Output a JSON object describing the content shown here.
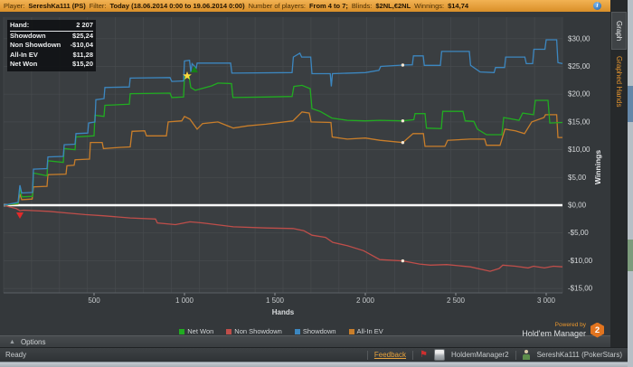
{
  "header": {
    "segments": [
      {
        "label": "Player:",
        "value": "SereshKa111 (PS)"
      },
      {
        "label": "Filter:",
        "value": "Today (18.06.2014 0:00 to 19.06.2014 0:00)"
      },
      {
        "label": "Number of players:",
        "value": "From 4 to 7;"
      },
      {
        "label": "Blinds:",
        "value": "$2NL,€2NL"
      },
      {
        "label": "Winnings:",
        "value": "$14,74"
      }
    ]
  },
  "stats_box": {
    "rows": [
      {
        "label": "Hand:",
        "value": "2 207"
      },
      {
        "label": "Showdown",
        "value": "$25,24"
      },
      {
        "label": "Non Showdown",
        "value": "-$10,04"
      },
      {
        "label": "All-In EV",
        "value": "$11,28"
      },
      {
        "label": "Net Won",
        "value": "$15,20"
      }
    ]
  },
  "legend": {
    "items": [
      {
        "label": "Net Won",
        "color": "#21ac21"
      },
      {
        "label": "Non Showdown",
        "color": "#bf4e4a"
      },
      {
        "label": "Showdown",
        "color": "#3c87c0"
      },
      {
        "label": "All-In EV",
        "color": "#c97e2a"
      }
    ]
  },
  "right_panel": {
    "tabs": [
      {
        "label": "Graph",
        "active": true
      },
      {
        "label": "Graphed Hands",
        "active": false
      }
    ]
  },
  "options_bar": {
    "label": "Options"
  },
  "powered": {
    "line1": "Powered by",
    "line2": "Hold'em Manager",
    "badge": "2"
  },
  "statusbar": {
    "ready": "Ready",
    "feedback": "Feedback",
    "app": "HoldemManager2",
    "account": "SereshKa111 (PokerStars)"
  },
  "colors": {
    "header_bar": "#e8a33d",
    "plot_bg": "#3a3e41",
    "grid": "#474b4e",
    "zero_line": "#ffffff",
    "accent_orange": "#e8962e"
  },
  "chart_data": {
    "type": "line",
    "title": "",
    "plot_bg": "#3a3e41",
    "grid_color": "#474b4e",
    "grid": true,
    "legend_position": "bottom",
    "x_axis": {
      "label": "Hands",
      "min": 0,
      "max": 3100,
      "ticks": [
        {
          "value": 500,
          "label": "500"
        },
        {
          "value": 1000,
          "label": "1 000"
        },
        {
          "value": 1500,
          "label": "1 500"
        },
        {
          "value": 2000,
          "label": "2 000"
        },
        {
          "value": 2500,
          "label": "2 500"
        },
        {
          "value": 3000,
          "label": "3 000"
        }
      ]
    },
    "y_axis": {
      "label": "Winnings",
      "min": -16,
      "max": 33.5,
      "ticks": [
        {
          "value": 30,
          "label": "$30,00"
        },
        {
          "value": 25,
          "label": "$25,00"
        },
        {
          "value": 20,
          "label": "$20,00"
        },
        {
          "value": 15,
          "label": "$15,00"
        },
        {
          "value": 10,
          "label": "$10,00"
        },
        {
          "value": 5,
          "label": "$5,00"
        },
        {
          "value": 0,
          "label": "$0,00"
        },
        {
          "value": -5,
          "label": "-$5,00"
        },
        {
          "value": -10,
          "label": "-$10,00"
        },
        {
          "value": -15,
          "label": "-$15,00"
        }
      ]
    },
    "hover": {
      "hand": 2207,
      "hand_label": "2 207",
      "points": [
        {
          "series": "Showdown",
          "value": 25.24
        },
        {
          "series": "Net Won",
          "value": 15.2
        },
        {
          "series": "All-In EV",
          "value": 11.28
        },
        {
          "series": "Non Showdown",
          "value": -10.04
        }
      ]
    },
    "markers": [
      {
        "shape": "star",
        "hand": 1015,
        "value": 23.3,
        "color": "#ffd83d"
      },
      {
        "shape": "triangle-up",
        "hand": 1055,
        "value": 24.4,
        "color": "#178017"
      },
      {
        "shape": "triangle-down",
        "hand": 90,
        "value": -1.8,
        "color": "#e22a2a"
      }
    ],
    "series": [
      {
        "name": "Non Showdown",
        "color": "#bf4e4a",
        "final": -11.1,
        "points": [
          [
            0,
            0
          ],
          [
            30,
            -0.3
          ],
          [
            70,
            -0.6
          ],
          [
            90,
            -1.0
          ],
          [
            110,
            -0.9
          ],
          [
            250,
            -1.1
          ],
          [
            350,
            -1.4
          ],
          [
            450,
            -1.7
          ],
          [
            550,
            -1.9
          ],
          [
            700,
            -2.3
          ],
          [
            840,
            -2.5
          ],
          [
            850,
            -3.2
          ],
          [
            950,
            -3.5
          ],
          [
            1030,
            -3.0
          ],
          [
            1100,
            -3.2
          ],
          [
            1270,
            -3.9
          ],
          [
            1450,
            -4.1
          ],
          [
            1600,
            -4.2
          ],
          [
            1660,
            -4.6
          ],
          [
            1705,
            -5.4
          ],
          [
            1780,
            -5.8
          ],
          [
            1820,
            -6.7
          ],
          [
            1900,
            -7.3
          ],
          [
            1990,
            -8.2
          ],
          [
            2080,
            -9.8
          ],
          [
            2207,
            -10.04
          ],
          [
            2300,
            -10.6
          ],
          [
            2360,
            -10.8
          ],
          [
            2450,
            -10.7
          ],
          [
            2580,
            -11.1
          ],
          [
            2690,
            -11.9
          ],
          [
            2740,
            -11.4
          ],
          [
            2760,
            -10.8
          ],
          [
            2830,
            -11.0
          ],
          [
            2900,
            -11.3
          ],
          [
            2930,
            -11.0
          ],
          [
            2990,
            -11.3
          ],
          [
            3040,
            -11.0
          ],
          [
            3090,
            -11.1
          ]
        ]
      },
      {
        "name": "All-In EV",
        "color": "#c97e2a",
        "final": 12.2,
        "points": [
          [
            0,
            0
          ],
          [
            80,
            0.2
          ],
          [
            90,
            2.0
          ],
          [
            100,
            1.0
          ],
          [
            158,
            1.1
          ],
          [
            165,
            3.3
          ],
          [
            240,
            3.4
          ],
          [
            245,
            5.5
          ],
          [
            345,
            5.6
          ],
          [
            350,
            7.1
          ],
          [
            390,
            7.2
          ],
          [
            395,
            8.2
          ],
          [
            475,
            8.3
          ],
          [
            480,
            11.3
          ],
          [
            545,
            11.3
          ],
          [
            552,
            10.2
          ],
          [
            640,
            10.4
          ],
          [
            700,
            10.5
          ],
          [
            710,
            13.3
          ],
          [
            780,
            13.4
          ],
          [
            790,
            12.5
          ],
          [
            900,
            12.5
          ],
          [
            910,
            15.0
          ],
          [
            985,
            15.2
          ],
          [
            1000,
            16.0
          ],
          [
            1030,
            15.5
          ],
          [
            1070,
            13.7
          ],
          [
            1100,
            14.7
          ],
          [
            1185,
            15.0
          ],
          [
            1270,
            13.9
          ],
          [
            1350,
            14.3
          ],
          [
            1450,
            14.6
          ],
          [
            1600,
            15.2
          ],
          [
            1650,
            16.8
          ],
          [
            1690,
            16.6
          ],
          [
            1700,
            15.0
          ],
          [
            1810,
            14.9
          ],
          [
            1817,
            12.3
          ],
          [
            1900,
            11.9
          ],
          [
            2000,
            12.1
          ],
          [
            2080,
            11.7
          ],
          [
            2207,
            11.28
          ],
          [
            2264,
            12.9
          ],
          [
            2321,
            12.9
          ],
          [
            2330,
            10.6
          ],
          [
            2440,
            10.6
          ],
          [
            2455,
            11.7
          ],
          [
            2580,
            11.9
          ],
          [
            2660,
            11.9
          ],
          [
            2670,
            10.8
          ],
          [
            2745,
            10.8
          ],
          [
            2772,
            13.7
          ],
          [
            2830,
            13.4
          ],
          [
            2880,
            12.9
          ],
          [
            2920,
            15.0
          ],
          [
            2988,
            15.8
          ],
          [
            2996,
            16.3
          ],
          [
            3058,
            16.3
          ],
          [
            3065,
            12.2
          ],
          [
            3090,
            12.2
          ]
        ]
      },
      {
        "name": "Net Won",
        "color": "#21ac21",
        "final": 14.9,
        "points": [
          [
            0,
            0
          ],
          [
            80,
            0.3
          ],
          [
            90,
            3.2
          ],
          [
            100,
            1.5
          ],
          [
            160,
            1.6
          ],
          [
            165,
            5.8
          ],
          [
            240,
            5.3
          ],
          [
            245,
            8.0
          ],
          [
            330,
            7.7
          ],
          [
            335,
            10.2
          ],
          [
            395,
            10.0
          ],
          [
            400,
            12.3
          ],
          [
            500,
            12.5
          ],
          [
            505,
            16.2
          ],
          [
            555,
            16.0
          ],
          [
            560,
            18.0
          ],
          [
            695,
            18.2
          ],
          [
            700,
            20.1
          ],
          [
            920,
            20.2
          ],
          [
            930,
            19.4
          ],
          [
            995,
            19.5
          ],
          [
            1000,
            23.2
          ],
          [
            1025,
            23.3
          ],
          [
            1035,
            21.2
          ],
          [
            1060,
            20.7
          ],
          [
            1150,
            21.5
          ],
          [
            1185,
            22.0
          ],
          [
            1260,
            21.9
          ],
          [
            1268,
            19.4
          ],
          [
            1450,
            19.5
          ],
          [
            1595,
            19.6
          ],
          [
            1605,
            21.4
          ],
          [
            1650,
            21.6
          ],
          [
            1695,
            21.0
          ],
          [
            1705,
            17.4
          ],
          [
            1750,
            16.9
          ],
          [
            1815,
            15.7
          ],
          [
            1900,
            15.3
          ],
          [
            2000,
            15.2
          ],
          [
            2080,
            15.3
          ],
          [
            2207,
            15.2
          ],
          [
            2268,
            15.4
          ],
          [
            2275,
            16.5
          ],
          [
            2330,
            16.5
          ],
          [
            2338,
            13.9
          ],
          [
            2420,
            13.8
          ],
          [
            2428,
            16.9
          ],
          [
            2540,
            16.9
          ],
          [
            2552,
            15.2
          ],
          [
            2600,
            15.1
          ],
          [
            2620,
            13.7
          ],
          [
            2670,
            12.7
          ],
          [
            2755,
            12.7
          ],
          [
            2765,
            15.8
          ],
          [
            2850,
            15.3
          ],
          [
            2870,
            16.6
          ],
          [
            2930,
            16.3
          ],
          [
            2940,
            18.9
          ],
          [
            3010,
            18.9
          ],
          [
            3020,
            14.8
          ],
          [
            3090,
            14.9
          ]
        ]
      },
      {
        "name": "Showdown",
        "color": "#3c87c0",
        "final": 25.5,
        "points": [
          [
            0,
            0
          ],
          [
            80,
            0.5
          ],
          [
            90,
            3.6
          ],
          [
            100,
            2.2
          ],
          [
            160,
            2.3
          ],
          [
            165,
            6.5
          ],
          [
            240,
            6.6
          ],
          [
            245,
            8.7
          ],
          [
            330,
            8.8
          ],
          [
            335,
            10.9
          ],
          [
            395,
            11.0
          ],
          [
            400,
            12.9
          ],
          [
            465,
            13.0
          ],
          [
            470,
            14.8
          ],
          [
            505,
            15.0
          ],
          [
            510,
            19.0
          ],
          [
            555,
            19.2
          ],
          [
            560,
            21.2
          ],
          [
            695,
            21.3
          ],
          [
            700,
            22.9
          ],
          [
            920,
            23.0
          ],
          [
            930,
            22.3
          ],
          [
            995,
            22.4
          ],
          [
            1000,
            26.0
          ],
          [
            1028,
            26.1
          ],
          [
            1035,
            24.0
          ],
          [
            1042,
            25.5
          ],
          [
            1065,
            24.7
          ],
          [
            1070,
            25.6
          ],
          [
            1255,
            25.6
          ],
          [
            1262,
            23.8
          ],
          [
            1595,
            23.9
          ],
          [
            1602,
            26.7
          ],
          [
            1638,
            27.4
          ],
          [
            1648,
            26.7
          ],
          [
            1698,
            26.7
          ],
          [
            1705,
            23.7
          ],
          [
            1806,
            23.7
          ],
          [
            1812,
            21.4
          ],
          [
            1818,
            23.7
          ],
          [
            2000,
            23.9
          ],
          [
            2075,
            24.3
          ],
          [
            2085,
            25.0
          ],
          [
            2207,
            25.24
          ],
          [
            2260,
            25.3
          ],
          [
            2266,
            26.9
          ],
          [
            2320,
            26.9
          ],
          [
            2326,
            25.2
          ],
          [
            2415,
            25.2
          ],
          [
            2422,
            27.7
          ],
          [
            2575,
            27.7
          ],
          [
            2582,
            25.2
          ],
          [
            2635,
            24.0
          ],
          [
            2712,
            23.9
          ],
          [
            2720,
            24.8
          ],
          [
            2770,
            24.8
          ],
          [
            2776,
            26.7
          ],
          [
            2882,
            26.7
          ],
          [
            2890,
            25.5
          ],
          [
            2925,
            25.5
          ],
          [
            2932,
            28.1
          ],
          [
            2993,
            28.1
          ],
          [
            3000,
            29.8
          ],
          [
            3058,
            29.8
          ],
          [
            3065,
            25.7
          ],
          [
            3090,
            25.5
          ]
        ]
      }
    ]
  }
}
